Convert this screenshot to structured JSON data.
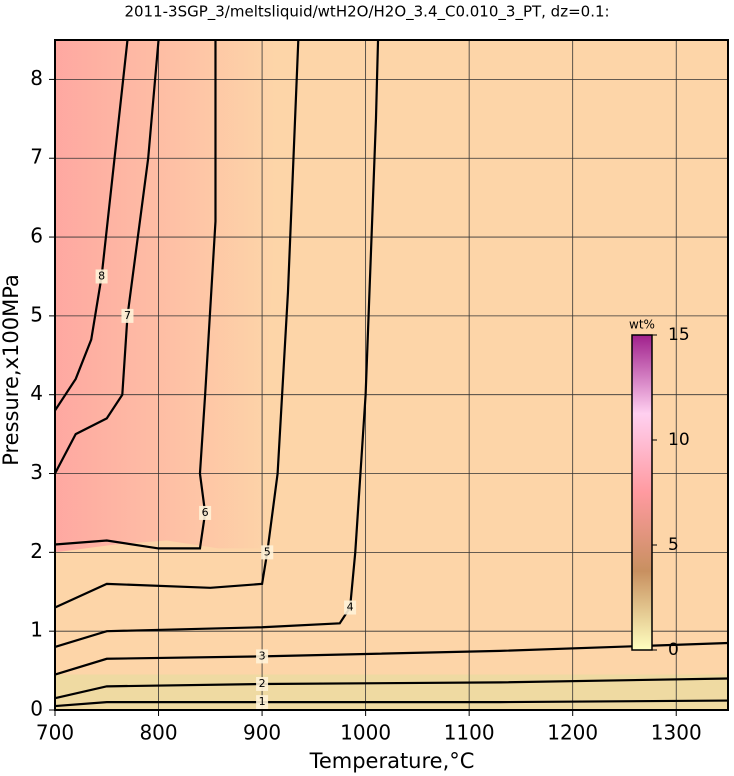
{
  "chart_data": {
    "type": "contour",
    "title": "2011-3SGP_3/meltsliquid/wtH2O/H2O_3.4_C0.010_3_PT, dz=0.1:",
    "xlabel": "Temperature,°C",
    "ylabel": "Pressure,x100MPa",
    "xlim": [
      700,
      1350
    ],
    "ylim": [
      0,
      8.5
    ],
    "xticks": [
      700,
      800,
      900,
      1000,
      1100,
      1200,
      1300
    ],
    "yticks": [
      0,
      1,
      2,
      3,
      4,
      5,
      6,
      7,
      8
    ],
    "grid": true,
    "contours": [
      {
        "level": 1,
        "x": [
          700,
          750,
          900,
          1130,
          1350
        ],
        "y": [
          0.05,
          0.1,
          0.1,
          0.1,
          0.12
        ]
      },
      {
        "level": 2,
        "x": [
          700,
          750,
          900,
          1130,
          1350
        ],
        "y": [
          0.15,
          0.3,
          0.33,
          0.35,
          0.4
        ]
      },
      {
        "level": 3,
        "x": [
          700,
          750,
          900,
          1130,
          1350
        ],
        "y": [
          0.45,
          0.65,
          0.68,
          0.75,
          0.85
        ]
      },
      {
        "level": 4,
        "x": [
          700,
          750,
          900,
          975,
          985,
          990,
          1000,
          1010,
          1012
        ],
        "y": [
          0.8,
          1.0,
          1.05,
          1.1,
          1.3,
          2,
          4,
          7.5,
          8.5
        ]
      },
      {
        "level": 5,
        "x": [
          700,
          750,
          850,
          900,
          905,
          915,
          925,
          935
        ],
        "y": [
          1.3,
          1.6,
          1.55,
          1.6,
          2,
          3,
          5.3,
          8.5
        ]
      },
      {
        "level": 6,
        "x": [
          700,
          750,
          800,
          840,
          845,
          840,
          845,
          855,
          855
        ],
        "y": [
          2.1,
          2.15,
          2.05,
          2.05,
          2.5,
          3,
          4,
          6.2,
          8.5
        ]
      },
      {
        "level": 7,
        "x": [
          700,
          720,
          750,
          765,
          770,
          780,
          790,
          800
        ],
        "y": [
          3,
          3.5,
          3.7,
          4,
          5,
          6,
          7,
          8.5
        ]
      },
      {
        "level": 8,
        "x": [
          700,
          720,
          735,
          745,
          755,
          770
        ],
        "y": [
          3.8,
          4.2,
          4.7,
          5.5,
          6.7,
          8.5
        ]
      }
    ],
    "colorbar": {
      "label": "wt%",
      "lim": [
        0,
        15
      ],
      "ticks": [
        0,
        5,
        10,
        15
      ],
      "colors": [
        "#ffffc0",
        "#c89060",
        "#ff9aa0",
        "#ffd0f0",
        "#a0208c"
      ]
    },
    "background_color": "#fdd5a8"
  }
}
